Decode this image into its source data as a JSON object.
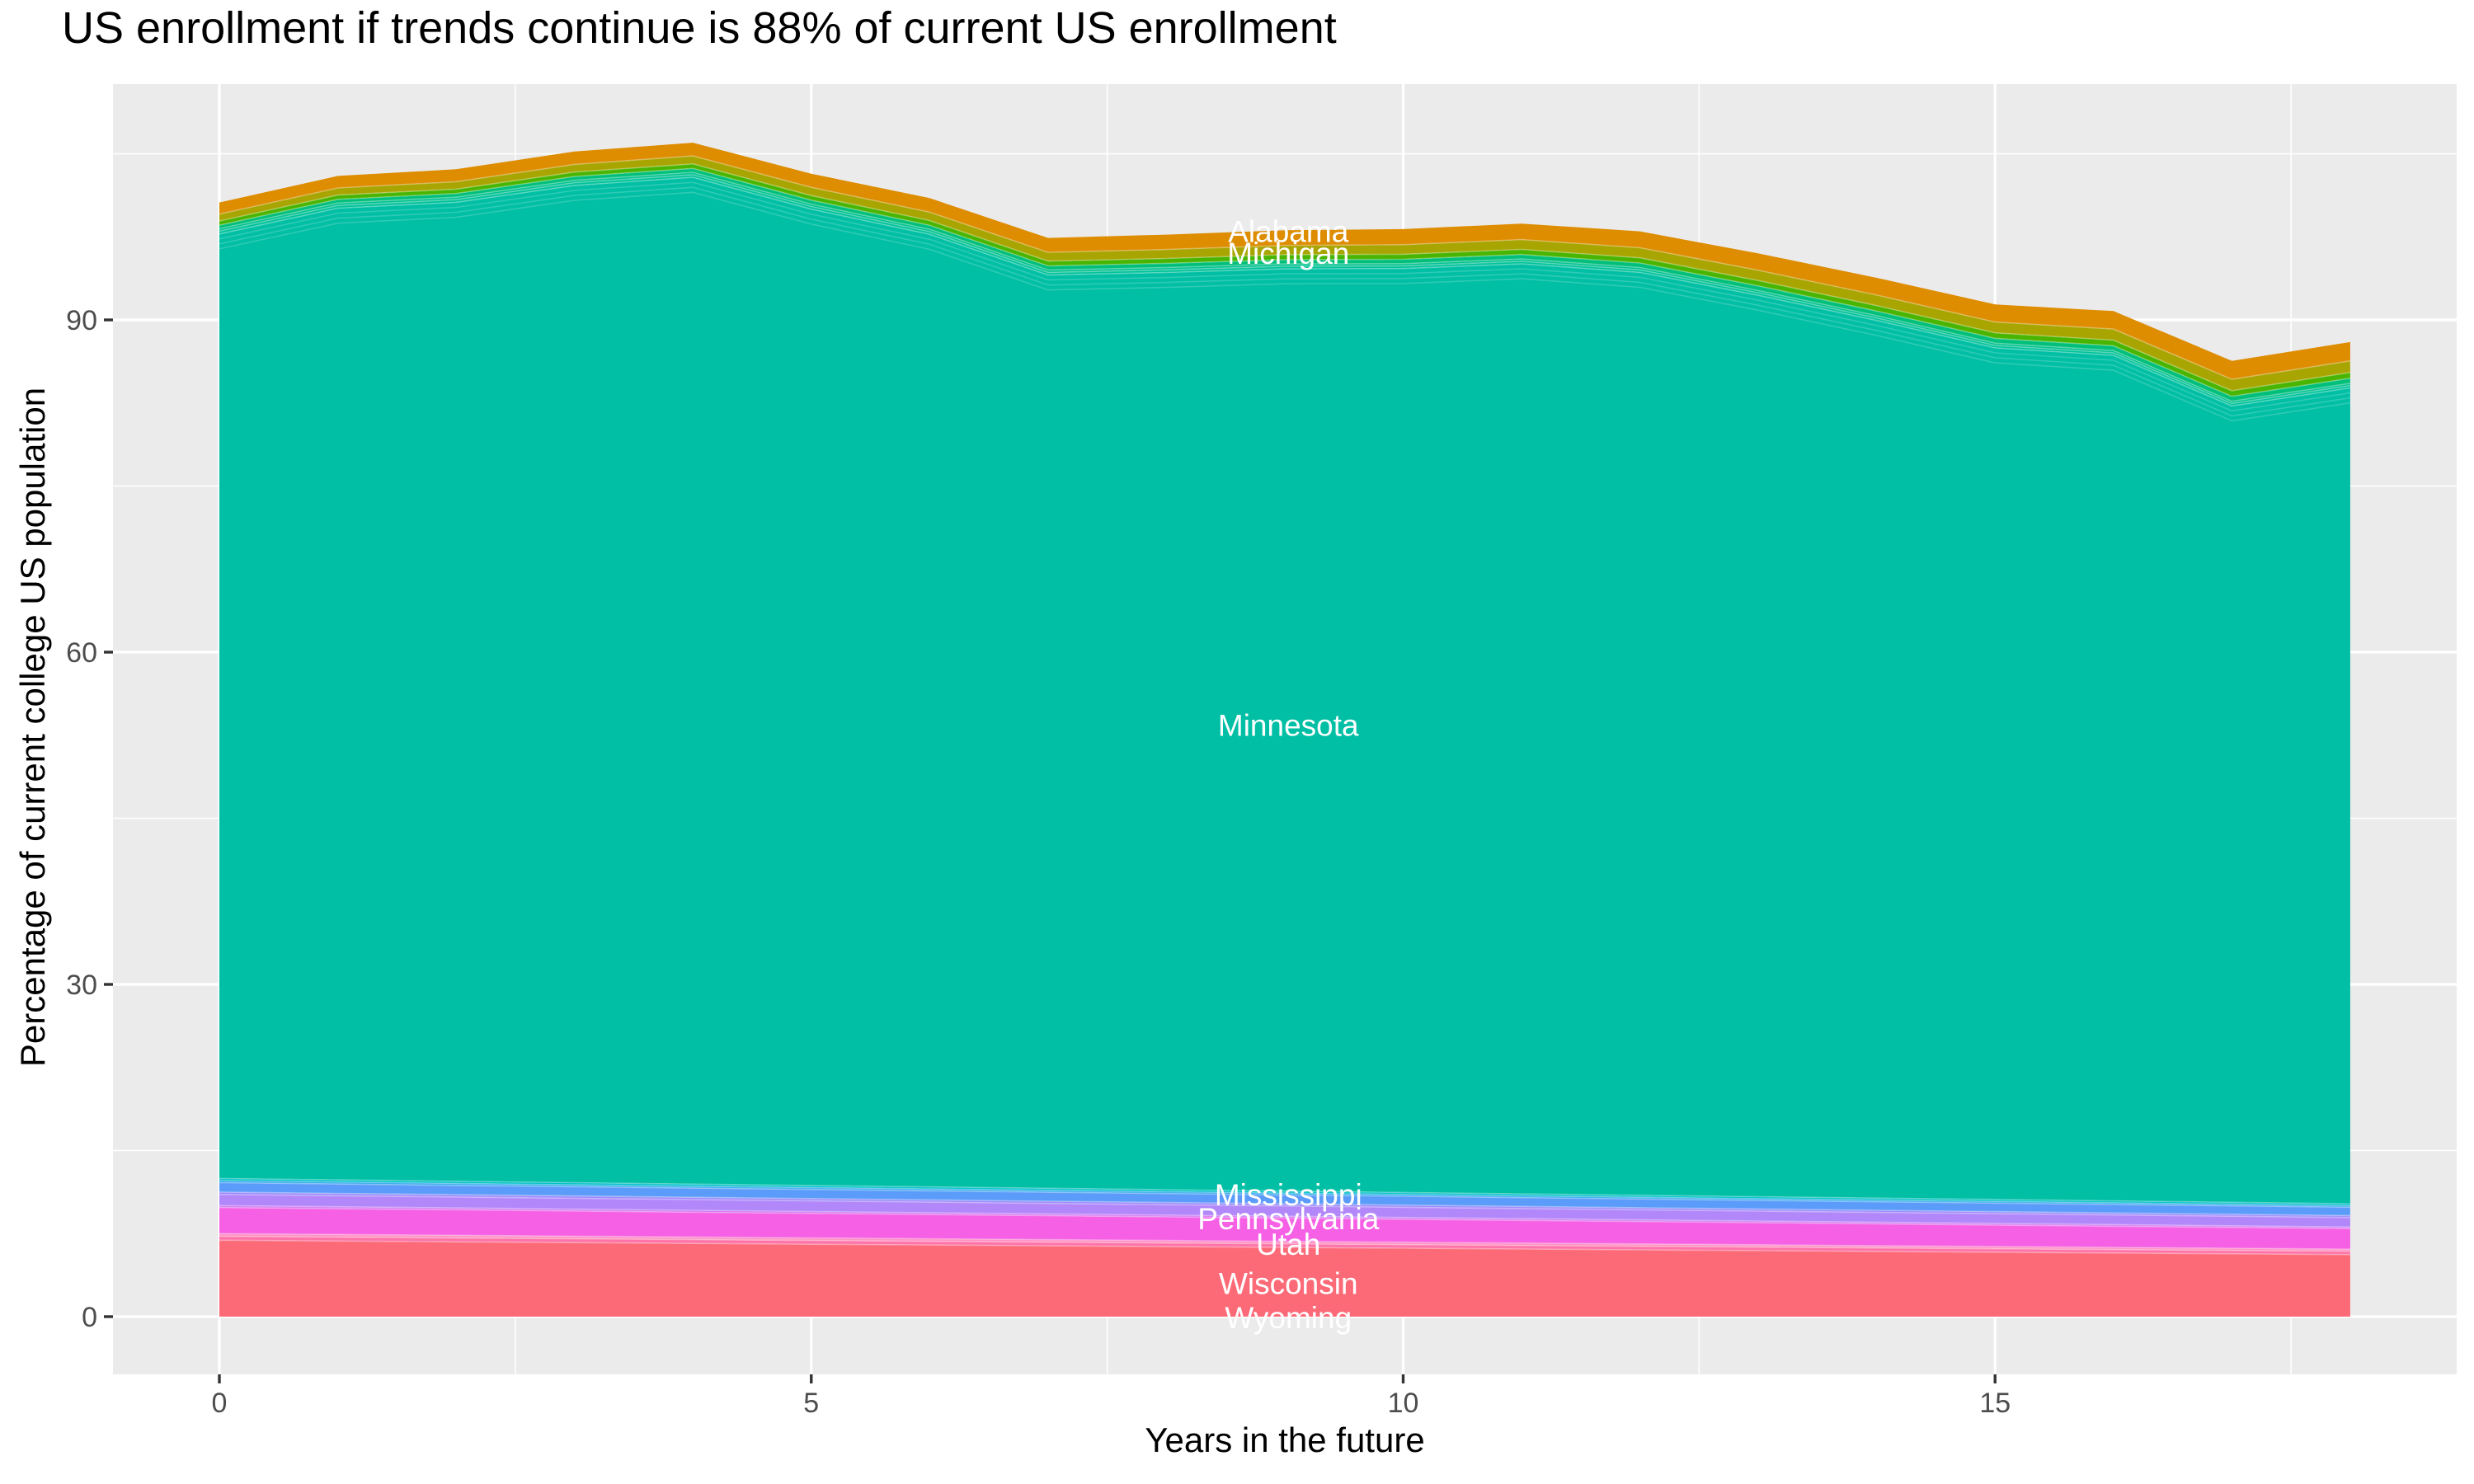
{
  "title": "US enrollment if trends continue is 88% of current US enrollment",
  "axes": {
    "x": {
      "title": "Years in the future",
      "ticks": [
        0,
        5,
        10,
        15
      ],
      "minor_ticks": [
        2.5,
        7.5,
        12.5,
        17.5
      ],
      "range": [
        -0.9,
        18.9
      ]
    },
    "y": {
      "title": "Percentage of current college US population",
      "ticks": [
        0,
        30,
        60,
        90
      ],
      "minor_ticks": [
        15,
        45,
        75,
        105
      ],
      "range": [
        -5.3,
        111.3
      ]
    }
  },
  "style": {
    "panel_bg": "#EBEBEB",
    "grid_color": "#FFFFFF",
    "tick_label_color": "#4D4D4D",
    "tick_mark_color": "#333333",
    "area_label_color": "#FFFFFF",
    "title_color": "#000000"
  },
  "chart_data": {
    "type": "area",
    "stacked": true,
    "grid": true,
    "legend": false,
    "x": [
      0,
      1,
      2,
      3,
      4,
      5,
      6,
      7,
      8,
      9,
      10,
      11,
      12,
      13,
      14,
      15,
      16,
      17,
      18
    ],
    "totals": [
      100.6,
      103.0,
      103.6,
      105.2,
      106.0,
      103.2,
      101.0,
      97.4,
      97.7,
      98.1,
      98.2,
      98.7,
      98.0,
      96.0,
      93.8,
      91.4,
      90.8,
      86.3,
      88.0
    ],
    "series": [
      {
        "name": "wisconsin-wyoming",
        "color": "#FC6A77",
        "t": [
          6.9,
          5.6
        ]
      },
      {
        "name": "thin-pink-1",
        "color": "#FF74A8",
        "t": [
          0.35,
          0.3
        ]
      },
      {
        "name": "thin-pink-2",
        "color": "#FF92C4",
        "t": [
          0.25,
          0.2
        ]
      },
      {
        "name": "utah",
        "color": "#F560E4",
        "t": [
          2.35,
          1.85
        ]
      },
      {
        "name": "thin-violet-1",
        "color": "#D678F2",
        "t": [
          0.18,
          0.15
        ]
      },
      {
        "name": "pennsylvania",
        "color": "#B287FA",
        "t": [
          1.0,
          0.85
        ]
      },
      {
        "name": "thin-violet-2",
        "color": "#9D8BFD",
        "t": [
          0.22,
          0.18
        ]
      },
      {
        "name": "mississippi",
        "color": "#5B9CFA",
        "t": [
          0.85,
          0.75
        ]
      },
      {
        "name": "thin-blue-1",
        "color": "#35ABEE",
        "t": [
          0.18,
          0.15
        ]
      },
      {
        "name": "thin-cyan-1",
        "color": "#00C1C9",
        "t": [
          0.2,
          0.17
        ]
      },
      {
        "name": "minnesota",
        "color": "#00BFA4",
        "remainder": true
      },
      {
        "name": "thin-teal-1",
        "color": "#00C29A",
        "t": [
          0.25,
          0.22
        ]
      },
      {
        "name": "thin-teal-2",
        "color": "#00C18F",
        "t": [
          0.22,
          0.2
        ]
      },
      {
        "name": "michigan",
        "color": "#00BF7A",
        "t": [
          0.32,
          0.45
        ]
      },
      {
        "name": "green-band",
        "color": "#49B500",
        "t": [
          0.38,
          0.52
        ]
      },
      {
        "name": "olive-band",
        "color": "#A8A500",
        "t": [
          0.62,
          1.05
        ]
      },
      {
        "name": "alabama",
        "color": "#DE8C00",
        "t": [
          1.05,
          1.7
        ]
      }
    ],
    "area_labels": [
      {
        "text": "Alabama",
        "x": 9.03,
        "y": 98.0
      },
      {
        "text": "Michigan",
        "x": 9.03,
        "y": 96.05
      },
      {
        "text": "Minnesota",
        "x": 9.03,
        "y": 53.4
      },
      {
        "text": "Mississippi",
        "x": 9.03,
        "y": 11.02
      },
      {
        "text": "Pennsylvania",
        "x": 9.03,
        "y": 8.86
      },
      {
        "text": "Utah",
        "x": 9.03,
        "y": 6.55
      },
      {
        "text": "Wisconsin",
        "x": 9.03,
        "y": 3.0
      },
      {
        "text": "Wyoming",
        "x": 9.03,
        "y": -0.08
      }
    ]
  }
}
